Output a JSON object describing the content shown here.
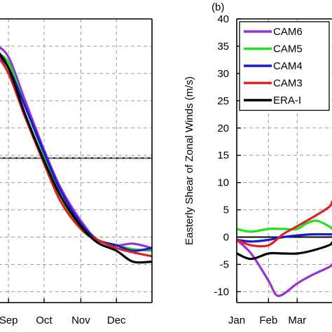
{
  "colors": {
    "CAM6": "#9b30d9",
    "CAM5": "#22e022",
    "CAM4": "#1a1acc",
    "CAM3": "#dd2222",
    "ERA-I": "#000000",
    "grid": "#9a9a9a"
  },
  "chart_data": [
    {
      "type": "line",
      "panel": "a (partial, cropped at left)",
      "categories": [
        "Sep",
        "Oct",
        "Nov",
        "Dec"
      ],
      "xlim": [
        "Aug 13",
        "Dec 31"
      ],
      "ylim": [
        -12,
        40
      ],
      "reference_line": 14.5,
      "grid": true,
      "series": [
        {
          "name": "CAM6",
          "x": [
            "Aug 13",
            "Aug 20",
            "Sep 1",
            "Sep 15",
            "Oct 1",
            "Oct 15",
            "Nov 1",
            "Nov 15",
            "Dec 1",
            "Dec 15",
            "Dec 31"
          ],
          "values": [
            37.5,
            35.5,
            33,
            25,
            16,
            9,
            3,
            -0.5,
            -1.5,
            -1.2,
            -2
          ]
        },
        {
          "name": "CAM5",
          "x": [
            "Aug 13",
            "Aug 20",
            "Sep 1",
            "Sep 15",
            "Oct 1",
            "Oct 15",
            "Nov 1",
            "Nov 15",
            "Dec 1",
            "Dec 15",
            "Dec 31"
          ],
          "values": [
            36,
            34,
            32,
            24,
            15,
            7.5,
            1.5,
            -0.5,
            -1.5,
            -2.2,
            -2.5
          ]
        },
        {
          "name": "CAM4",
          "x": [
            "Aug 13",
            "Aug 20",
            "Sep 1",
            "Sep 15",
            "Oct 1",
            "Oct 15",
            "Nov 1",
            "Nov 15",
            "Dec 1",
            "Dec 15",
            "Dec 31"
          ],
          "values": [
            36,
            34,
            31,
            24,
            15.5,
            8.5,
            2.5,
            -0.5,
            -1.5,
            -2.5,
            -2
          ]
        },
        {
          "name": "CAM3",
          "x": [
            "Aug 13",
            "Aug 20",
            "Sep 1",
            "Sep 15",
            "Oct 1",
            "Oct 15",
            "Nov 1",
            "Nov 15",
            "Dec 1",
            "Dec 15",
            "Dec 31"
          ],
          "values": [
            36,
            34,
            30,
            22,
            13.5,
            6.5,
            1.5,
            -0.5,
            -2,
            -2.8,
            -3.5
          ]
        },
        {
          "name": "ERA-I",
          "x": [
            "Aug 13",
            "Aug 20",
            "Sep 1",
            "Sep 15",
            "Oct 1",
            "Oct 15",
            "Nov 1",
            "Nov 15",
            "Dec 1",
            "Dec 15",
            "Dec 31"
          ],
          "values": [
            38,
            35,
            31,
            22.5,
            14,
            7.5,
            2,
            -1,
            -2.5,
            -4.5,
            -4.5
          ]
        }
      ]
    },
    {
      "type": "line",
      "panel": "(b)",
      "title": "(b)",
      "ylabel": "Easterly Shear of Zonal Winds (m/s)",
      "categories": [
        "Jan",
        "Feb",
        "Mar"
      ],
      "xlim": [
        "Jan 1",
        "Apr 4"
      ],
      "ylim": [
        -12,
        40
      ],
      "yticks": [
        -10,
        -5,
        0,
        5,
        10,
        15,
        20,
        25,
        30,
        35,
        40
      ],
      "reference_line": 0,
      "grid": true,
      "legend_position": "top-left",
      "series": [
        {
          "name": "CAM6",
          "x": [
            "Jan 1",
            "Jan 15",
            "Feb 1",
            "Feb 8",
            "Feb 15",
            "Mar 1",
            "Mar 15",
            "Apr 1",
            "Apr 4"
          ],
          "values": [
            -0.5,
            -3,
            -8,
            -10.5,
            -10.5,
            -8.5,
            -7,
            -5.5,
            -5
          ]
        },
        {
          "name": "CAM5",
          "x": [
            "Jan 1",
            "Jan 15",
            "Feb 1",
            "Feb 15",
            "Mar 1",
            "Mar 10",
            "Mar 20",
            "Apr 1",
            "Apr 4"
          ],
          "values": [
            1.5,
            1,
            1.5,
            1.5,
            1.5,
            2.5,
            3,
            2,
            1.5
          ]
        },
        {
          "name": "CAM4",
          "x": [
            "Jan 1",
            "Jan 15",
            "Feb 1",
            "Feb 15",
            "Mar 1",
            "Mar 15",
            "Apr 1",
            "Apr 4"
          ],
          "values": [
            -0.5,
            -0.8,
            -0.5,
            0,
            0.3,
            0.5,
            0.5,
            0.5
          ]
        },
        {
          "name": "CAM3",
          "x": [
            "Jan 1",
            "Jan 15",
            "Feb 1",
            "Feb 15",
            "Mar 1",
            "Mar 15",
            "Apr 1",
            "Apr 4"
          ],
          "values": [
            -0.5,
            -1.5,
            -1.5,
            0.5,
            2,
            3.5,
            5.5,
            6.5
          ]
        },
        {
          "name": "ERA-I",
          "x": [
            "Jan 1",
            "Jan 15",
            "Feb 1",
            "Feb 15",
            "Mar 1",
            "Mar 15",
            "Apr 1",
            "Apr 4"
          ],
          "values": [
            -3,
            -4,
            -3,
            -3,
            -3,
            -2.5,
            -1.5,
            -1
          ]
        }
      ]
    }
  ]
}
